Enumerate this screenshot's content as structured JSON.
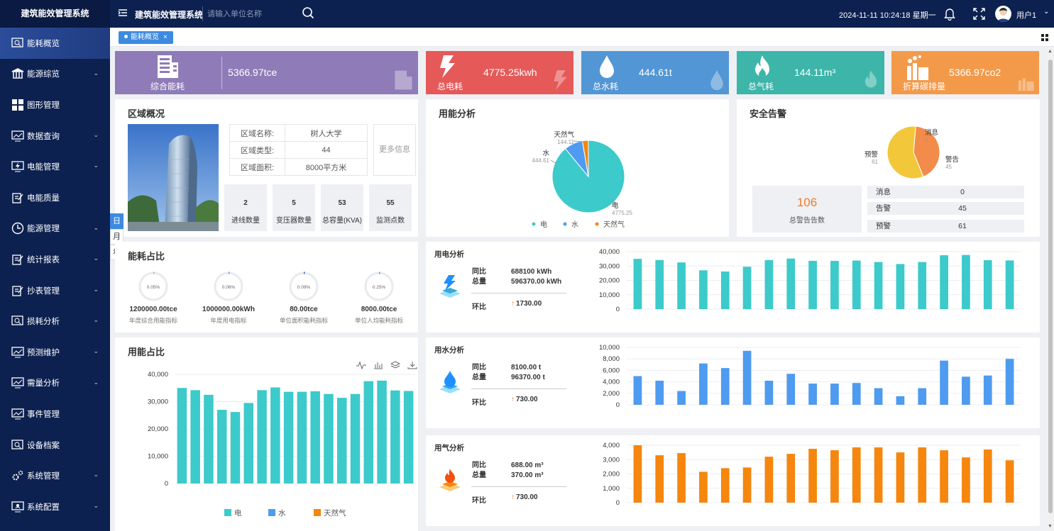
{
  "app": {
    "brand": "建筑能效管理系统",
    "title": "建筑能效管理系统",
    "search_placeholder": "请输入单位名称",
    "datetime": "2024-11-11 10:24:18 星期一",
    "username": "用户1"
  },
  "sidebar": {
    "items": [
      {
        "label": "能耗概览",
        "icon": "search-doc-icon",
        "chev": false,
        "active": true
      },
      {
        "label": "能源综览",
        "icon": "bank-icon",
        "chev": true
      },
      {
        "label": "图形管理",
        "icon": "grid-icon",
        "chev": false
      },
      {
        "label": "数据查询",
        "icon": "chart-monitor-icon",
        "chev": true
      },
      {
        "label": "电能管理",
        "icon": "power-monitor-icon",
        "chev": true
      },
      {
        "label": "电能质量",
        "icon": "edit-doc-icon",
        "chev": false
      },
      {
        "label": "能源管理",
        "icon": "clock-icon",
        "chev": true
      },
      {
        "label": "统计报表",
        "icon": "edit-doc-icon",
        "chev": true
      },
      {
        "label": "抄表管理",
        "icon": "edit-doc-icon",
        "chev": true
      },
      {
        "label": "损耗分析",
        "icon": "search-doc-icon",
        "chev": true
      },
      {
        "label": "预测维护",
        "icon": "chart-monitor-icon",
        "chev": true
      },
      {
        "label": "需量分析",
        "icon": "chart-monitor-icon",
        "chev": true
      },
      {
        "label": "事件管理",
        "icon": "chart-monitor-icon",
        "chev": false
      },
      {
        "label": "设备档案",
        "icon": "search-doc-icon",
        "chev": false
      },
      {
        "label": "系统管理",
        "icon": "gears-icon",
        "chev": true
      },
      {
        "label": "系统配置",
        "icon": "monitor-icon",
        "chev": true
      }
    ]
  },
  "tabs": [
    {
      "label": "能耗概览",
      "close": "×"
    }
  ],
  "kpis": [
    {
      "value": "5366.97tce",
      "label": "综合能耗",
      "color": "#8e7bb7",
      "icon": "building-icon"
    },
    {
      "value": "4775.25kwh",
      "label": "总电耗",
      "color": "#e55959",
      "icon": "lightning-icon"
    },
    {
      "value": "444.61t",
      "label": "总水耗",
      "color": "#5296d5",
      "icon": "water-drop-icon"
    },
    {
      "value": "144.11m³",
      "label": "总气耗",
      "color": "#3db5a9",
      "icon": "flame-icon"
    },
    {
      "value": "5366.97co2",
      "label": "折算碳排量",
      "color": "#f39a4a",
      "icon": "factory-icon"
    }
  ],
  "region": {
    "title": "区域概况",
    "rows": [
      {
        "key": "区域名称:",
        "value": "树人大学"
      },
      {
        "key": "区域类型:",
        "value": "44"
      },
      {
        "key": "区域面积:",
        "value": "8000平方米"
      }
    ],
    "more": "更多信息",
    "stats": [
      {
        "value": "2",
        "label": "进线数量"
      },
      {
        "value": "5",
        "label": "变压器数量"
      },
      {
        "value": "53",
        "label": "总容量(KVA)"
      },
      {
        "value": "55",
        "label": "监测点数"
      }
    ],
    "periods": [
      "日",
      "月",
      "年"
    ]
  },
  "usage_analysis": {
    "title": "用能分析",
    "chart_data": {
      "type": "pie",
      "categories": [
        "电",
        "水",
        "天然气"
      ],
      "values": [
        4775.25,
        444.61,
        144.11
      ],
      "colors": [
        "#3ccacb",
        "#4e9bf0",
        "#f5860e"
      ],
      "legend": "bottom"
    },
    "labels": [
      {
        "name": "电",
        "value": "4775.25"
      },
      {
        "name": "水",
        "value": "444.61"
      },
      {
        "name": "天然气",
        "value": "144.11"
      }
    ]
  },
  "alarm": {
    "title": "安全告警",
    "chart_data": {
      "type": "pie",
      "categories": [
        "消息",
        "警告",
        "预警"
      ],
      "values": [
        0,
        45,
        61
      ],
      "colors": [
        "#4e9bf0",
        "#f38b4a",
        "#f2c73a"
      ]
    },
    "labels": [
      {
        "name": "消息",
        "value": "0"
      },
      {
        "name": "警告",
        "value": "45"
      },
      {
        "name": "预警",
        "value": "61"
      }
    ],
    "total": "106",
    "total_label": "总警告告数",
    "rows": [
      {
        "key": "消息",
        "value": "0"
      },
      {
        "key": "告警",
        "value": "45"
      },
      {
        "key": "预警",
        "value": "61"
      }
    ]
  },
  "ratio": {
    "title": "能耗占比",
    "rings": [
      {
        "pct": "0.05%",
        "value": "1200000.00tce",
        "label": "年度综合用能指标",
        "fraction": 0.0005,
        "color": "#f5a623"
      },
      {
        "pct": "0.06%",
        "value": "1000000.00kWh",
        "label": "年度用电指标",
        "fraction": 0.0006,
        "color": "#4e9bf0"
      },
      {
        "pct": "0.09%",
        "value": "80.00tce",
        "label": "单位面积能耗指标",
        "fraction": 0.0009,
        "color": "#3b5bdb"
      },
      {
        "pct": "0.25%",
        "value": "8000.00tce",
        "label": "单位人均能耗指标",
        "fraction": 0.0025,
        "color": "#4e9bf0"
      }
    ]
  },
  "usage_ratio": {
    "title": "用能占比",
    "chart_data": {
      "type": "bar",
      "series": [
        {
          "name": "电",
          "values": [
            35000,
            34200,
            32500,
            27000,
            26200,
            29500,
            34200,
            35200,
            33600,
            33600,
            33800,
            32800,
            31400,
            32800,
            37500,
            37700,
            34100,
            33900
          ]
        }
      ],
      "ylim": [
        0,
        40000
      ],
      "yticks": [
        "0",
        "10,000",
        "20,000",
        "30,000",
        "40,000"
      ],
      "legend": "bottom",
      "grid": true
    },
    "legend": [
      {
        "name": "电",
        "color": "#3ccacb"
      },
      {
        "name": "水",
        "color": "#4e9bf0"
      },
      {
        "name": "天然气",
        "color": "#f5860e"
      }
    ]
  },
  "electric": {
    "title": "用电分析",
    "tb_label": "同比",
    "total_label": "总量",
    "tb_value": "688100 kWh",
    "total_value": "596370.00 kWh",
    "hb_label": "环比",
    "hb_value": "1730.00",
    "chart_data": {
      "type": "bar",
      "values": [
        35000,
        34200,
        32500,
        27000,
        26200,
        29500,
        34200,
        35200,
        33600,
        33600,
        33800,
        32800,
        31400,
        32800,
        37500,
        37700,
        34100,
        33900
      ],
      "ylim": [
        0,
        40000
      ],
      "yticks": [
        "0",
        "10,000",
        "20,000",
        "30,000",
        "40,000"
      ],
      "color": "#3ccacb"
    }
  },
  "water": {
    "title": "用水分析",
    "tb_label": "同比",
    "total_label": "总量",
    "tb_value": "8100.00 t",
    "total_value": "96370.00 t",
    "hb_label": "环比",
    "hb_value": "730.00",
    "chart_data": {
      "type": "bar",
      "values": [
        5000,
        4200,
        2400,
        7200,
        6400,
        9400,
        4200,
        5400,
        3700,
        3700,
        3800,
        2900,
        1500,
        2900,
        7700,
        4900,
        5100,
        8000
      ],
      "ylim": [
        0,
        10000
      ],
      "yticks": [
        "0",
        "2,000",
        "4,000",
        "6,000",
        "8,000",
        "10,000"
      ],
      "color": "#4e9bf0"
    }
  },
  "gas": {
    "title": "用气分析",
    "tb_label": "同比",
    "total_label": "总量",
    "tb_value": "688.00 m³",
    "total_value": "370.00 m³",
    "hb_label": "环比",
    "hb_value": "730.00",
    "chart_data": {
      "type": "bar",
      "values": [
        4000,
        3300,
        3450,
        2150,
        2400,
        2450,
        3200,
        3400,
        3750,
        3650,
        3850,
        3850,
        3500,
        3850,
        3650,
        3150,
        3700,
        2950
      ],
      "ylim": [
        0,
        4000
      ],
      "yticks": [
        "0",
        "1,000",
        "2,000",
        "3,000",
        "4,000"
      ],
      "color": "#f5860e"
    }
  }
}
